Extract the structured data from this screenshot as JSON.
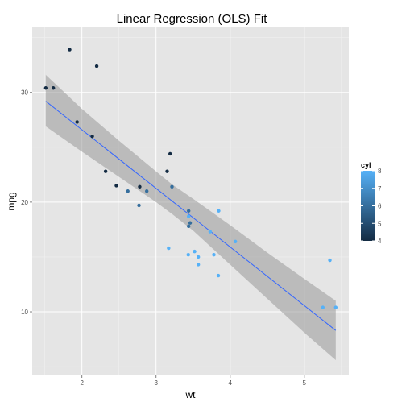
{
  "chart_data": {
    "type": "scatter",
    "title": "Linear Regression (OLS) Fit",
    "xlabel": "wt",
    "ylabel": "mpg",
    "xlim": [
      1.33,
      5.6
    ],
    "ylim": [
      4.2,
      36.0
    ],
    "x_ticks": [
      2,
      3,
      4,
      5
    ],
    "x_tick_labels": [
      "2",
      "3",
      "4",
      "5"
    ],
    "y_ticks": [
      10,
      20,
      30
    ],
    "y_tick_labels": [
      "10",
      "20",
      "30"
    ],
    "grid": true,
    "background": "#e5e5e5",
    "color_variable": "cyl",
    "legend": {
      "title": "cyl",
      "placement": "right",
      "labels": [
        "8",
        "7",
        "6",
        "5",
        "4"
      ],
      "values": [
        8,
        7,
        6,
        5,
        4
      ],
      "color_low": "#132b43",
      "color_high": "#56b1f7"
    },
    "points": [
      {
        "x": 2.62,
        "y": 21.0,
        "cyl": 6
      },
      {
        "x": 2.875,
        "y": 21.0,
        "cyl": 6
      },
      {
        "x": 2.32,
        "y": 22.8,
        "cyl": 4
      },
      {
        "x": 3.215,
        "y": 21.4,
        "cyl": 6
      },
      {
        "x": 3.44,
        "y": 18.7,
        "cyl": 8
      },
      {
        "x": 3.46,
        "y": 18.1,
        "cyl": 6
      },
      {
        "x": 3.57,
        "y": 14.3,
        "cyl": 8
      },
      {
        "x": 3.19,
        "y": 24.4,
        "cyl": 4
      },
      {
        "x": 3.15,
        "y": 22.8,
        "cyl": 4
      },
      {
        "x": 3.44,
        "y": 19.2,
        "cyl": 6
      },
      {
        "x": 3.44,
        "y": 17.8,
        "cyl": 6
      },
      {
        "x": 4.07,
        "y": 16.4,
        "cyl": 8
      },
      {
        "x": 3.73,
        "y": 17.3,
        "cyl": 8
      },
      {
        "x": 3.78,
        "y": 15.2,
        "cyl": 8
      },
      {
        "x": 5.25,
        "y": 10.4,
        "cyl": 8
      },
      {
        "x": 5.424,
        "y": 10.4,
        "cyl": 8
      },
      {
        "x": 5.345,
        "y": 14.7,
        "cyl": 8
      },
      {
        "x": 2.2,
        "y": 32.4,
        "cyl": 4
      },
      {
        "x": 1.615,
        "y": 30.4,
        "cyl": 4
      },
      {
        "x": 1.835,
        "y": 33.9,
        "cyl": 4
      },
      {
        "x": 2.465,
        "y": 21.5,
        "cyl": 4
      },
      {
        "x": 3.52,
        "y": 15.5,
        "cyl": 8
      },
      {
        "x": 3.435,
        "y": 15.2,
        "cyl": 8
      },
      {
        "x": 3.84,
        "y": 13.3,
        "cyl": 8
      },
      {
        "x": 3.845,
        "y": 19.2,
        "cyl": 8
      },
      {
        "x": 1.935,
        "y": 27.3,
        "cyl": 4
      },
      {
        "x": 2.14,
        "y": 26.0,
        "cyl": 4
      },
      {
        "x": 1.513,
        "y": 30.4,
        "cyl": 4
      },
      {
        "x": 3.17,
        "y": 15.8,
        "cyl": 8
      },
      {
        "x": 2.77,
        "y": 19.7,
        "cyl": 6
      },
      {
        "x": 3.57,
        "y": 15.0,
        "cyl": 8
      },
      {
        "x": 2.78,
        "y": 21.4,
        "cyl": 4
      }
    ],
    "fit_line": {
      "color": "#3366ff",
      "intercept": 37.285,
      "slope": -5.344,
      "x_range": [
        1.513,
        5.424
      ],
      "ci_color": "#999999",
      "ci_upper": [
        {
          "x": 1.513,
          "y": 31.6
        },
        {
          "x": 2.0,
          "y": 28.5
        },
        {
          "x": 2.5,
          "y": 25.6
        },
        {
          "x": 3.0,
          "y": 22.8
        },
        {
          "x": 3.22,
          "y": 21.6
        },
        {
          "x": 3.5,
          "y": 20.3
        },
        {
          "x": 4.0,
          "y": 17.9
        },
        {
          "x": 4.5,
          "y": 15.4
        },
        {
          "x": 5.0,
          "y": 13.0
        },
        {
          "x": 5.424,
          "y": 11.0
        }
      ],
      "ci_lower": [
        {
          "x": 1.513,
          "y": 26.9
        },
        {
          "x": 2.0,
          "y": 24.6
        },
        {
          "x": 2.5,
          "y": 22.3
        },
        {
          "x": 3.0,
          "y": 20.0
        },
        {
          "x": 3.22,
          "y": 18.9
        },
        {
          "x": 3.5,
          "y": 17.4
        },
        {
          "x": 4.0,
          "y": 14.3
        },
        {
          "x": 4.5,
          "y": 11.2
        },
        {
          "x": 5.0,
          "y": 8.1
        },
        {
          "x": 5.424,
          "y": 5.6
        }
      ]
    }
  }
}
